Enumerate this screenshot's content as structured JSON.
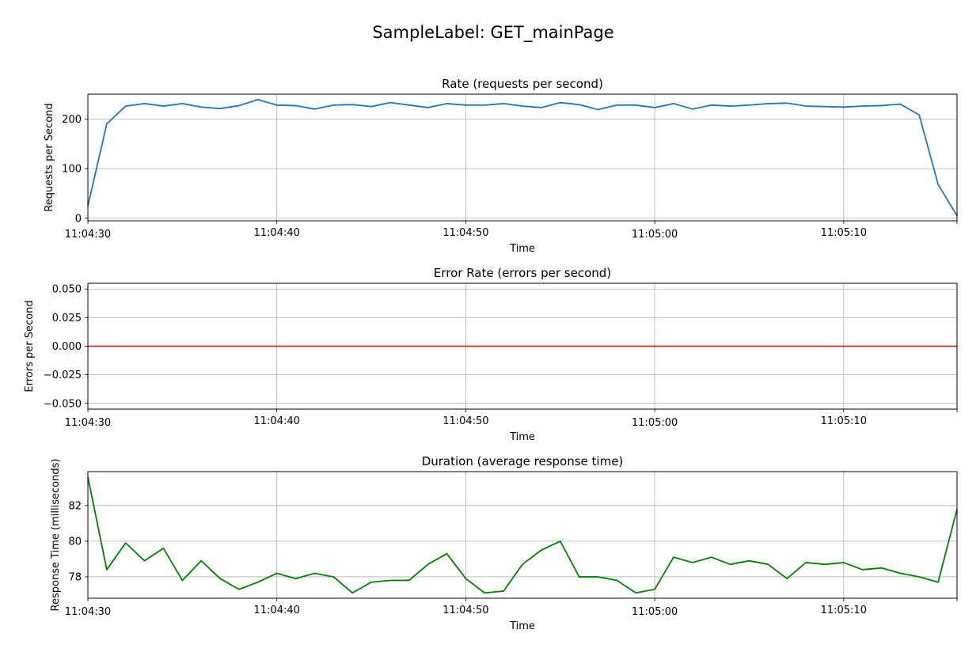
{
  "figure_title": "SampleLabel: GET_mainPage",
  "colors": {
    "rate": "#1f77b4",
    "errors": "#d62728",
    "duration": "#008000",
    "grid": "#b0b0b0"
  },
  "chart_data": [
    {
      "type": "line",
      "title": "Rate (requests per second)",
      "xlabel": "Time",
      "ylabel": "Requests per Second",
      "grid": true,
      "xlim": [
        "11:04:30",
        "11:05:16"
      ],
      "ylim": [
        -5,
        250
      ],
      "xticks": [
        "11:04:30",
        "11:04:40",
        "11:04:50",
        "11:05:00",
        "11:05:10"
      ],
      "yticks": [
        0,
        100,
        200
      ],
      "ytick_labels": [
        "0",
        "100",
        "200"
      ],
      "series": [
        {
          "color": "#1f77b4",
          "x": [
            "11:04:30",
            "11:04:31",
            "11:04:32",
            "11:04:33",
            "11:04:34",
            "11:04:35",
            "11:04:36",
            "11:04:37",
            "11:04:38",
            "11:04:39",
            "11:04:40",
            "11:04:41",
            "11:04:42",
            "11:04:43",
            "11:04:44",
            "11:04:45",
            "11:04:46",
            "11:04:47",
            "11:04:48",
            "11:04:49",
            "11:04:50",
            "11:04:51",
            "11:04:52",
            "11:04:53",
            "11:04:54",
            "11:04:55",
            "11:04:56",
            "11:04:57",
            "11:04:58",
            "11:04:59",
            "11:05:00",
            "11:05:01",
            "11:05:02",
            "11:05:03",
            "11:05:04",
            "11:05:05",
            "11:05:06",
            "11:05:07",
            "11:05:08",
            "11:05:09",
            "11:05:10",
            "11:05:11",
            "11:05:12",
            "11:05:13",
            "11:05:14",
            "11:05:15",
            "11:05:16"
          ],
          "values": [
            25,
            190,
            226,
            231,
            226,
            231,
            224,
            221,
            227,
            239,
            228,
            227,
            220,
            228,
            229,
            225,
            233,
            228,
            223,
            231,
            228,
            228,
            231,
            226,
            223,
            233,
            229,
            219,
            228,
            228,
            223,
            231,
            220,
            228,
            226,
            228,
            231,
            232,
            226,
            225,
            224,
            226,
            227,
            230,
            208,
            68,
            5
          ]
        }
      ]
    },
    {
      "type": "line",
      "title": "Error Rate (errors per second)",
      "xlabel": "Time",
      "ylabel": "Errors per Second",
      "grid": true,
      "xlim": [
        "11:04:30",
        "11:05:16"
      ],
      "ylim": [
        -0.055,
        0.055
      ],
      "xticks": [
        "11:04:30",
        "11:04:40",
        "11:04:50",
        "11:05:00",
        "11:05:10"
      ],
      "yticks": [
        0.05,
        0.025,
        0,
        -0.025,
        -0.05
      ],
      "ytick_labels": [
        "0.050",
        "0.025",
        "0.000",
        "−0.025",
        "−0.050"
      ],
      "series": [
        {
          "color": "#d62728",
          "x": [
            "11:04:30",
            "11:05:16"
          ],
          "values": [
            0,
            0
          ]
        }
      ]
    },
    {
      "type": "line",
      "title": "Duration (average response time)",
      "xlabel": "Time",
      "ylabel": "Response Time (milliseconds)",
      "grid": true,
      "xlim": [
        "11:04:30",
        "11:05:16"
      ],
      "ylim": [
        76.8,
        83.9
      ],
      "xticks": [
        "11:04:30",
        "11:04:40",
        "11:04:50",
        "11:05:00",
        "11:05:10"
      ],
      "yticks": [
        78,
        80,
        82
      ],
      "ytick_labels": [
        "78",
        "80",
        "82"
      ],
      "series": [
        {
          "color": "#008000",
          "x": [
            "11:04:30",
            "11:04:31",
            "11:04:32",
            "11:04:33",
            "11:04:34",
            "11:04:35",
            "11:04:36",
            "11:04:37",
            "11:04:38",
            "11:04:39",
            "11:04:40",
            "11:04:41",
            "11:04:42",
            "11:04:43",
            "11:04:44",
            "11:04:45",
            "11:04:46",
            "11:04:47",
            "11:04:48",
            "11:04:49",
            "11:04:50",
            "11:04:51",
            "11:04:52",
            "11:04:53",
            "11:04:54",
            "11:04:55",
            "11:04:56",
            "11:04:57",
            "11:04:58",
            "11:04:59",
            "11:05:00",
            "11:05:01",
            "11:05:02",
            "11:05:03",
            "11:05:04",
            "11:05:05",
            "11:05:06",
            "11:05:07",
            "11:05:08",
            "11:05:09",
            "11:05:10",
            "11:05:11",
            "11:05:12",
            "11:05:13",
            "11:05:14",
            "11:05:15",
            "11:05:16"
          ],
          "values": [
            83.6,
            78.4,
            79.9,
            78.9,
            79.6,
            77.8,
            78.9,
            77.9,
            77.3,
            77.7,
            78.2,
            77.9,
            78.2,
            78.0,
            77.1,
            77.7,
            77.8,
            77.8,
            78.7,
            79.3,
            77.9,
            77.1,
            77.2,
            78.7,
            79.5,
            80.0,
            78.0,
            78.0,
            77.8,
            77.1,
            77.3,
            79.1,
            78.8,
            79.1,
            78.7,
            78.9,
            78.7,
            77.9,
            78.8,
            78.7,
            78.8,
            78.4,
            78.5,
            78.2,
            78.0,
            77.7,
            81.8
          ]
        }
      ]
    }
  ]
}
